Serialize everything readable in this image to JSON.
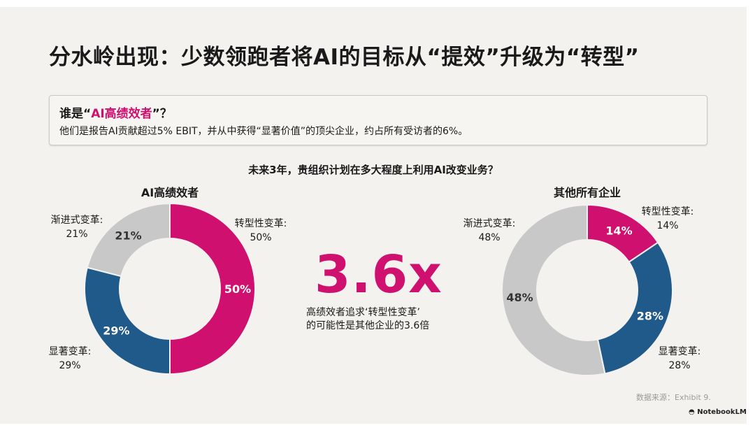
{
  "title": "分水岭出现：少数领跑者将AI的目标从“提效”升级为“转型”",
  "callout": {
    "heading_prefix": "谁是“",
    "heading_highlight": "AI高绩效者",
    "heading_suffix": "”？",
    "body": "他们是报告AI贡献超过5% EBIT，并从中获得“显著价值”的顶尖企业，约占所有受访者的6%。"
  },
  "question": "未来3年，贵组织计划在多大程度上利用AI改变业务？",
  "highlight": {
    "value": "3.6x",
    "caption_line1": "高绩效者追求‘转型性变革’",
    "caption_line2": "的可能性是其他企业的3.6倍"
  },
  "source": "数据来源：Exhibit 9.",
  "brand": "NotebookLM",
  "colors": {
    "transformational": "#d0106f",
    "significant": "#1f5a8a",
    "incremental": "#c8c8c8"
  },
  "chart_data": [
    {
      "type": "pie",
      "title": "AI高绩效者",
      "categories": [
        "转型性变革",
        "显著变革",
        "渐进式变革"
      ],
      "values": [
        50,
        29,
        21
      ],
      "value_labels": [
        "50%",
        "29%",
        "21%"
      ],
      "callouts": [
        {
          "name": "转型性变革:",
          "value": "50%"
        },
        {
          "name": "显著变革:",
          "value": "29%"
        },
        {
          "name": "渐进式变革:",
          "value": "21%"
        }
      ]
    },
    {
      "type": "pie",
      "title": "其他所有企业",
      "categories": [
        "转型性变革",
        "显著变革",
        "渐进式变革"
      ],
      "values": [
        14,
        28,
        48
      ],
      "value_labels": [
        "14%",
        "28%",
        "48%"
      ],
      "callouts": [
        {
          "name": "转型性变革:",
          "value": "14%"
        },
        {
          "name": "显著变革:",
          "value": "28%"
        },
        {
          "name": "渐进式变革:",
          "value": "48%"
        }
      ]
    }
  ]
}
